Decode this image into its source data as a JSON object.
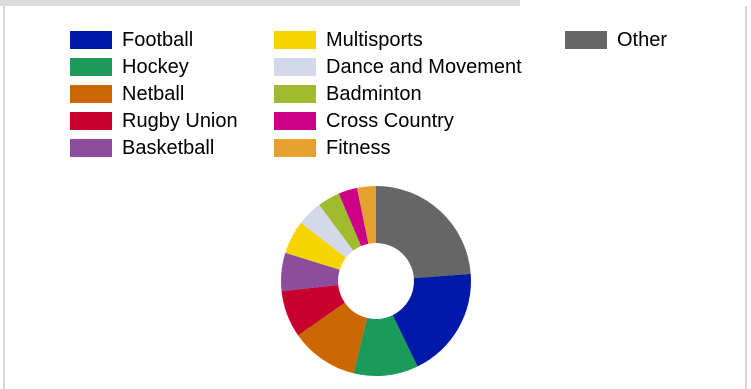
{
  "chart_data": {
    "type": "pie",
    "donut": true,
    "title": "",
    "legend_position": "top",
    "series": [
      {
        "name": "Football",
        "value": 19.0,
        "color": "#0019a8"
      },
      {
        "name": "Hockey",
        "value": 11.0,
        "color": "#1b9a5a"
      },
      {
        "name": "Netball",
        "value": 11.5,
        "color": "#cc6600"
      },
      {
        "name": "Rugby Union",
        "value": 8.0,
        "color": "#c8002d"
      },
      {
        "name": "Basketball",
        "value": 6.5,
        "color": "#8e4c9c"
      },
      {
        "name": "Multisports",
        "value": 5.7,
        "color": "#f5d400"
      },
      {
        "name": "Dance and Movement",
        "value": 4.3,
        "color": "#d4d9ea"
      },
      {
        "name": "Badminton",
        "value": 3.8,
        "color": "#a0bb2d"
      },
      {
        "name": "Cross Country",
        "value": 3.2,
        "color": "#cc0088"
      },
      {
        "name": "Fitness",
        "value": 3.2,
        "color": "#e5a12b"
      },
      {
        "name": "Other",
        "value": 23.8,
        "color": "#666666"
      }
    ],
    "draw_order": [
      "Other",
      "Football",
      "Hockey",
      "Netball",
      "Rugby Union",
      "Basketball",
      "Multisports",
      "Dance and Movement",
      "Badminton",
      "Cross Country",
      "Fitness"
    ]
  }
}
